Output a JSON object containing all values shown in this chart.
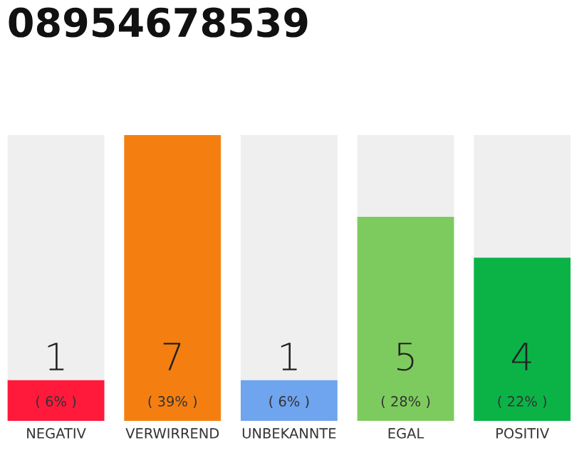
{
  "chart_data": {
    "type": "bar",
    "title": "08954678539",
    "categories": [
      "NEGATIV",
      "VERWIRREND",
      "UNBEKANNTE",
      "EGAL",
      "POSITIV"
    ],
    "stacked": true,
    "series": [
      {
        "colors": [
          "#ff1a3b",
          "#f47f10",
          "#6fa4ee",
          "#7dcb5e",
          "#0bb347"
        ],
        "values": [
          1,
          7,
          1,
          5,
          4
        ],
        "value_labels": [
          "1",
          "7",
          "1",
          "5",
          "4"
        ]
      },
      {
        "color": "#efefef",
        "values": [
          6,
          0,
          6,
          2,
          3
        ]
      }
    ],
    "annotations": [
      "( 6% )",
      "( 39% )",
      "( 6% )",
      "( 28% )",
      "( 22% )"
    ],
    "ylim": [
      0,
      7
    ],
    "tick_labels": "x",
    "grid": false,
    "legend": false
  }
}
